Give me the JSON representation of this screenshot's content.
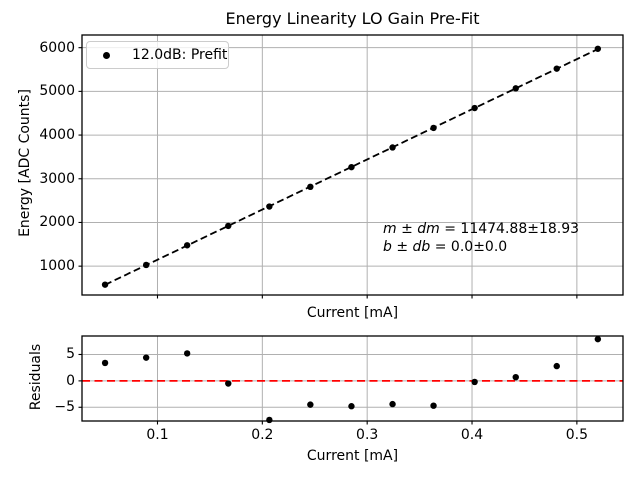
{
  "chart_data": [
    {
      "type": "scatter",
      "title": "Energy Linearity LO Gain Pre-Fit",
      "xlabel": "Current [mA]",
      "ylabel": "Energy [ADC Counts]",
      "xlim": [
        0.028,
        0.544
      ],
      "ylim": [
        340,
        6290
      ],
      "xticks": [
        0.1,
        0.2,
        0.3,
        0.4,
        0.5
      ],
      "yticks": [
        1000,
        2000,
        3000,
        4000,
        5000,
        6000
      ],
      "ytick_labels": [
        "1000",
        "2000",
        "3000",
        "4000",
        "5000",
        "6000"
      ],
      "grid": true,
      "legend": [
        "12.0dB: Prefit"
      ],
      "legend_position": "upper left",
      "marker_color": "#000000",
      "fit_line_color": "#000000",
      "fit_line_style": "dashed",
      "x": [
        0.05,
        0.0892,
        0.1283,
        0.1675,
        0.2067,
        0.2458,
        0.285,
        0.3242,
        0.3633,
        0.4025,
        0.4417,
        0.4808,
        0.52
      ],
      "y": [
        577.1,
        1027.9,
        1477.4,
        1921.5,
        2364.5,
        2816.0,
        3265.5,
        3715.8,
        4164.1,
        4618.4,
        5069.2,
        5519.9,
        5974.8
      ],
      "fit": {
        "slope": 11474.88,
        "slope_err": 18.93,
        "intercept": 0.0,
        "intercept_err": 0.0
      },
      "annotation_parts": [
        [
          "m ± dm",
          " = 11474.88±18.93"
        ],
        [
          "b ± db",
          " = 0.0±0.0"
        ]
      ]
    },
    {
      "type": "scatter",
      "xlabel": "Current [mA]",
      "ylabel": "Residuals",
      "xlim": [
        0.028,
        0.544
      ],
      "ylim": [
        -7.6,
        8.5
      ],
      "xticks": [
        0.1,
        0.2,
        0.3,
        0.4,
        0.5
      ],
      "xtick_labels": [
        "0.1",
        "0.2",
        "0.3",
        "0.4",
        "0.5"
      ],
      "yticks": [
        -5,
        0,
        5
      ],
      "ytick_labels": [
        "−5",
        "0",
        "5"
      ],
      "grid": true,
      "marker_color": "#000000",
      "zero_line": {
        "y": 0,
        "color": "#ff0000",
        "style": "dashed"
      },
      "x": [
        0.05,
        0.0892,
        0.1283,
        0.1675,
        0.2067,
        0.2458,
        0.285,
        0.3242,
        0.3633,
        0.4025,
        0.4417,
        0.4808,
        0.52
      ],
      "y": [
        3.4,
        4.4,
        5.2,
        -0.5,
        -7.4,
        -4.5,
        -4.8,
        -4.4,
        -4.7,
        -0.2,
        0.7,
        2.8,
        7.9
      ]
    }
  ]
}
